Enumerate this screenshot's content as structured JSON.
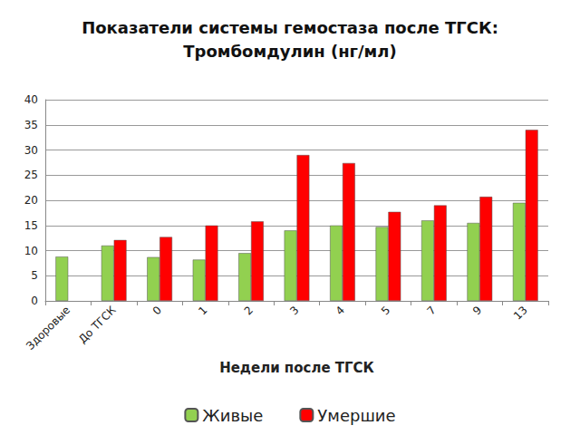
{
  "chart_data": {
    "type": "bar",
    "title": "Показатели системы гемостаза после ТГСК:\nТромбомдулин (нг/мл)",
    "x_label": "Недели после ТГСК",
    "categories": [
      "Здоровые",
      "До ТГСК",
      "0",
      "1",
      "2",
      "3",
      "4",
      "5",
      "7",
      "9",
      "13"
    ],
    "series": [
      {
        "name": "Живые",
        "color": "#92d050",
        "values": [
          8.8,
          11,
          8.7,
          8.2,
          9.5,
          14,
          15,
          14.7,
          16,
          15.5,
          19.5
        ]
      },
      {
        "name": "Умершие",
        "color": "#ff0000",
        "values": [
          null,
          12.1,
          12.7,
          15,
          15.8,
          29,
          27.4,
          17.7,
          19,
          20.7,
          34
        ]
      }
    ],
    "ylim": [
      0,
      40
    ],
    "yticks": [
      0,
      5,
      10,
      15,
      20,
      25,
      30,
      35,
      40
    ],
    "grid": true,
    "legend": "bottom"
  }
}
